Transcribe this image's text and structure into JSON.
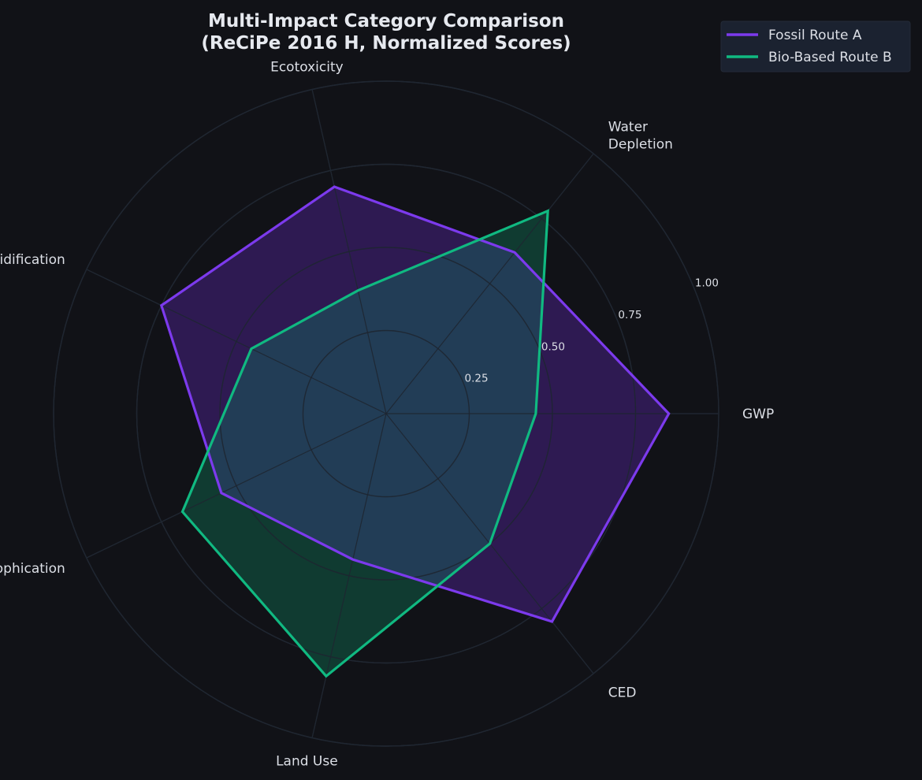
{
  "chart_data": {
    "type": "radar",
    "title_lines": [
      "Multi-Impact Category Comparison",
      "(ReCiPe 2016 H, Normalized Scores)"
    ],
    "axes": [
      {
        "lines": [
          "GWP"
        ]
      },
      {
        "lines": [
          "Water",
          "Depletion"
        ]
      },
      {
        "lines": [
          "Ecotoxicity"
        ]
      },
      {
        "lines": [
          "Acidification"
        ]
      },
      {
        "lines": [
          "Eutrophication"
        ]
      },
      {
        "lines": [
          "Land Use"
        ]
      },
      {
        "lines": [
          "CED"
        ]
      }
    ],
    "radial_ticks": [
      0.25,
      0.5,
      0.75,
      1.0
    ],
    "radial_tick_labels": [
      "0.25",
      "0.50",
      "0.75",
      "1.00"
    ],
    "rlim": [
      0,
      1.0
    ],
    "grid": true,
    "legend_position": "top-right",
    "series": [
      {
        "name": "Fossil Route A",
        "color": "#7c3aed",
        "fill": "#2e1a52",
        "values": [
          0.85,
          0.62,
          0.7,
          0.75,
          0.55,
          0.45,
          0.8
        ]
      },
      {
        "name": "Bio-Based Route B",
        "color": "#10b981",
        "fill": "#103b31",
        "values": [
          0.45,
          0.78,
          0.38,
          0.45,
          0.68,
          0.81,
          0.5
        ]
      }
    ],
    "overlap_fill": "#223d56",
    "background": "#111217",
    "grid_color": "#2a2d36"
  }
}
